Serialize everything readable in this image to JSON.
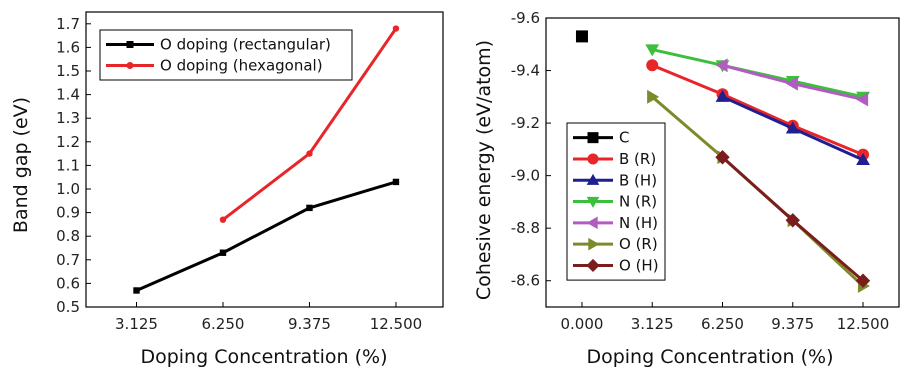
{
  "chart_data": [
    {
      "type": "line",
      "title": "",
      "xlabel": "Doping Concentration (%)",
      "ylabel": "Band gap (eV)",
      "x_ticks": [
        "3.125",
        "6.250",
        "9.375",
        "12.500"
      ],
      "x_tick_values": [
        3.125,
        6.25,
        9.375,
        12.5
      ],
      "xlim": [
        1.3,
        14.2
      ],
      "y_ticks": [
        "0.5",
        "0.6",
        "0.7",
        "0.8",
        "0.9",
        "1.0",
        "1.1",
        "1.2",
        "1.3",
        "1.4",
        "1.5",
        "1.6",
        "1.7"
      ],
      "y_tick_values": [
        0.5,
        0.6,
        0.7,
        0.8,
        0.9,
        1.0,
        1.1,
        1.2,
        1.3,
        1.4,
        1.5,
        1.6,
        1.7
      ],
      "ylim": [
        0.5,
        1.75
      ],
      "legend_position": "top-left",
      "series": [
        {
          "name": "O doping (rectangular)",
          "color": "#000000",
          "marker": "square",
          "x": [
            3.125,
            6.25,
            9.375,
            12.5
          ],
          "y": [
            0.57,
            0.73,
            0.92,
            1.03
          ]
        },
        {
          "name": "O doping (hexagonal)",
          "color": "#e8262a",
          "marker": "circle",
          "x": [
            6.25,
            9.375,
            12.5
          ],
          "y": [
            0.87,
            1.15,
            1.68
          ]
        }
      ]
    },
    {
      "type": "line",
      "title": "",
      "xlabel": "Doping Concentration (%)",
      "ylabel": "Cohesive energy (eV/atom)",
      "x_ticks": [
        "0.000",
        "3.125",
        "6.250",
        "9.375",
        "12.500"
      ],
      "x_tick_values": [
        0,
        3.125,
        6.25,
        9.375,
        12.5
      ],
      "xlim": [
        -1.6,
        14.1
      ],
      "y_ticks": [
        "-9.6",
        "-9.4",
        "-9.2",
        "-9.0",
        "-8.8",
        "-8.6"
      ],
      "y_tick_values": [
        -9.6,
        -9.4,
        -9.2,
        -9.0,
        -8.8,
        -8.6
      ],
      "ylim": [
        -9.6,
        -8.5
      ],
      "y_inverted": true,
      "legend_position": "bottom-left",
      "series": [
        {
          "name": "C",
          "color": "#000000",
          "marker": "square",
          "x": [
            0
          ],
          "y": [
            -9.53
          ]
        },
        {
          "name": "B (R)",
          "color": "#e8262a",
          "marker": "circle",
          "x": [
            3.125,
            6.25,
            9.375,
            12.5
          ],
          "y": [
            -9.42,
            -9.31,
            -9.19,
            -9.08
          ]
        },
        {
          "name": "B (H)",
          "color": "#1f1f8f",
          "marker": "triangle-up",
          "x": [
            6.25,
            9.375,
            12.5
          ],
          "y": [
            -9.3,
            -9.18,
            -9.06
          ]
        },
        {
          "name": "N (R)",
          "color": "#3cbf3c",
          "marker": "triangle-down",
          "x": [
            3.125,
            6.25,
            9.375,
            12.5
          ],
          "y": [
            -9.48,
            -9.42,
            -9.36,
            -9.3
          ]
        },
        {
          "name": "N (H)",
          "color": "#b05cc0",
          "marker": "triangle-left",
          "x": [
            6.25,
            9.375,
            12.5
          ],
          "y": [
            -9.42,
            -9.35,
            -9.29
          ]
        },
        {
          "name": "O (R)",
          "color": "#7d8a2a",
          "marker": "triangle-right",
          "x": [
            3.125,
            6.25,
            9.375,
            12.5
          ],
          "y": [
            -9.3,
            -9.07,
            -8.83,
            -8.58
          ]
        },
        {
          "name": "O (H)",
          "color": "#7a1d1d",
          "marker": "diamond",
          "x": [
            6.25,
            9.375,
            12.5
          ],
          "y": [
            -9.07,
            -8.83,
            -8.6
          ]
        }
      ]
    }
  ]
}
